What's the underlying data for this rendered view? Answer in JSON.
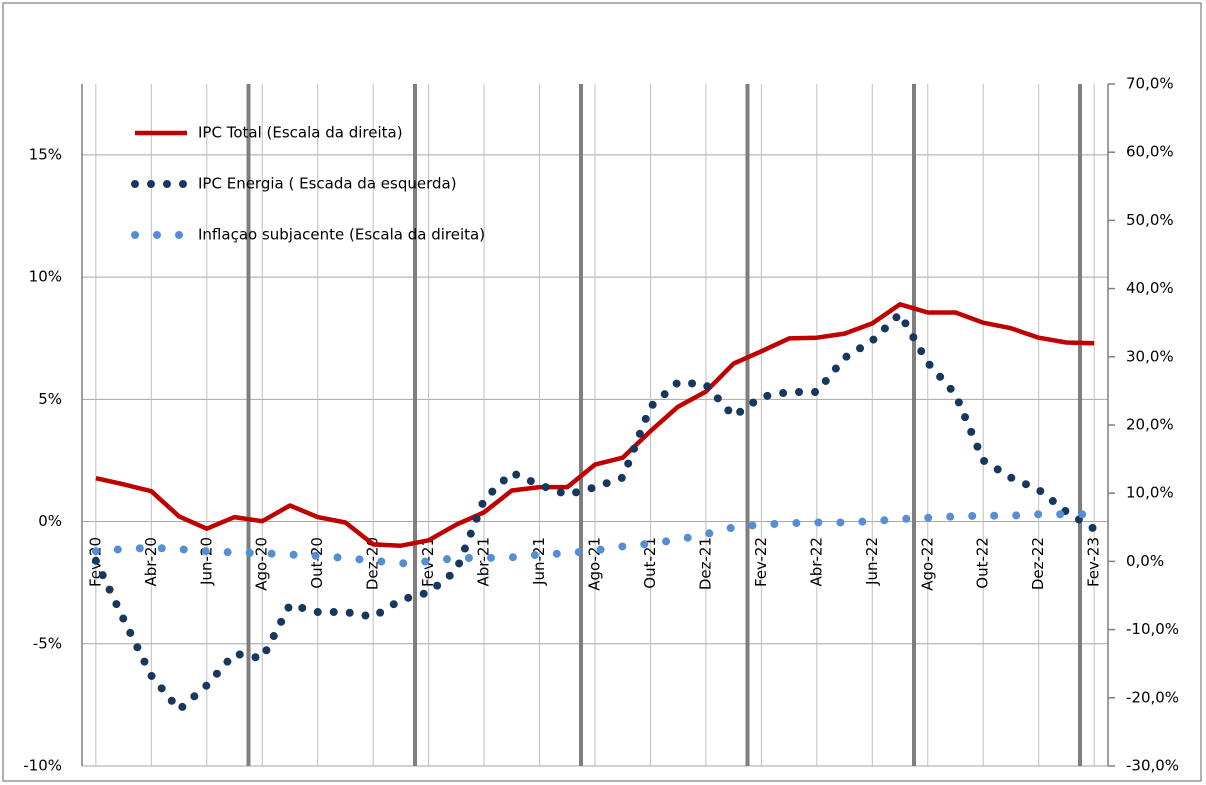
{
  "chart_data": {
    "type": "line",
    "categories": [
      "Fev-20",
      null,
      "Abr-20",
      null,
      "Jun-20",
      null,
      "Ago-20",
      null,
      "Out-20",
      null,
      "Dez-20",
      null,
      "Fev-21",
      null,
      "Abr-21",
      null,
      "Jun-21",
      null,
      "Ago-21",
      null,
      "Out-21",
      null,
      "Dez-21",
      null,
      "Fev-22",
      null,
      "Abr-22",
      null,
      "Jun-22",
      null,
      "Ago-22",
      null,
      "Out-22",
      null,
      "Dez-22",
      null,
      "Fev-23"
    ],
    "series": [
      {
        "name": "IPC Total (Escala da  direita)",
        "color": "#c00000",
        "axis": "y2",
        "style": "solid",
        "values": [
          12.2,
          11.3,
          10.3,
          6.6,
          4.8,
          6.5,
          5.9,
          8.2,
          6.5,
          5.7,
          2.5,
          2.3,
          3.1,
          5.4,
          7.2,
          10.4,
          10.9,
          10.9,
          14.2,
          15.2,
          19.1,
          22.7,
          24.9,
          29.0,
          30.8,
          32.7,
          32.8,
          33.4,
          34.9,
          37.7,
          36.5,
          36.5,
          35.0,
          34.2,
          32.8,
          32.1,
          32.0
        ]
      },
      {
        "name": "IPC Energia ( Escada da esquerda)",
        "color": "#17375e",
        "axis": "y",
        "style": "dots",
        "values": [
          -1.6,
          -4.0,
          -6.3,
          -7.7,
          -6.7,
          -5.4,
          -5.6,
          -3.4,
          -3.7,
          -3.7,
          -3.9,
          -3.2,
          -2.9,
          -2.0,
          0.9,
          2.0,
          1.5,
          1.1,
          1.4,
          1.8,
          4.7,
          5.7,
          5.6,
          4.3,
          5.1,
          5.3,
          5.3,
          6.7,
          7.4,
          8.5,
          6.5,
          5.2,
          2.5,
          1.8,
          1.3,
          0.4,
          -0.3
        ]
      },
      {
        "name": "Inflaçao subjacente (Escala da direita)",
        "color": "#558ed5",
        "axis": "y2",
        "style": "dots",
        "values": [
          1.5,
          1.8,
          2.0,
          1.8,
          1.5,
          1.3,
          1.2,
          1.0,
          0.8,
          0.5,
          0.1,
          -0.3,
          0.0,
          0.5,
          0.5,
          0.6,
          1.0,
          1.2,
          1.6,
          2.2,
          2.6,
          3.2,
          4.0,
          5.0,
          5.4,
          5.6,
          5.7,
          5.7,
          5.9,
          6.2,
          6.4,
          6.6,
          6.7,
          6.7,
          6.9,
          6.9,
          6.9
        ]
      }
    ],
    "ylim": [
      -10,
      17.9
    ],
    "yticks": [
      {
        "value": -10,
        "label": "-10%"
      },
      {
        "value": -5,
        "label": "-5%"
      },
      {
        "value": 0,
        "label": "0%"
      },
      {
        "value": 5,
        "label": "5%"
      },
      {
        "value": 10,
        "label": "10%"
      },
      {
        "value": 15,
        "label": "15%"
      }
    ],
    "y2lim": [
      -30,
      70
    ],
    "y2ticks": [
      {
        "value": -30,
        "label": "-30,0%"
      },
      {
        "value": -20,
        "label": "-20,0%"
      },
      {
        "value": -10,
        "label": "-10,0%"
      },
      {
        "value": 0,
        "label": "0,0%"
      },
      {
        "value": 10,
        "label": "10,0%"
      },
      {
        "value": 20,
        "label": "20,0%"
      },
      {
        "value": 30,
        "label": "30,0%"
      },
      {
        "value": 40,
        "label": "40,0%"
      },
      {
        "value": 50,
        "label": "50,0%"
      },
      {
        "value": 60,
        "label": "60,0%"
      },
      {
        "value": 70,
        "label": "70,0%"
      }
    ],
    "grid": true,
    "xgrid": true,
    "legend": "top-left"
  }
}
